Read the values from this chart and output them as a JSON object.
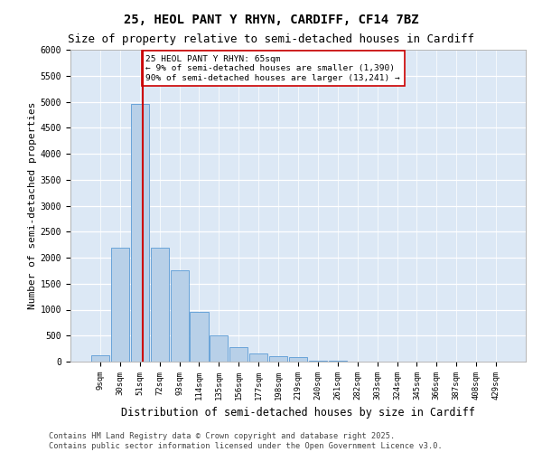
{
  "title_line1": "25, HEOL PANT Y RHYN, CARDIFF, CF14 7BZ",
  "title_line2": "Size of property relative to semi-detached houses in Cardiff",
  "xlabel": "Distribution of semi-detached houses by size in Cardiff",
  "ylabel": "Number of semi-detached properties",
  "footer": "Contains HM Land Registry data © Crown copyright and database right 2025.\nContains public sector information licensed under the Open Government Licence v3.0.",
  "categories": [
    "9sqm",
    "30sqm",
    "51sqm",
    "72sqm",
    "93sqm",
    "114sqm",
    "135sqm",
    "156sqm",
    "177sqm",
    "198sqm",
    "219sqm",
    "240sqm",
    "261sqm",
    "282sqm",
    "303sqm",
    "324sqm",
    "345sqm",
    "366sqm",
    "387sqm",
    "408sqm",
    "429sqm"
  ],
  "bar_values": [
    120,
    2200,
    4950,
    2200,
    1750,
    950,
    500,
    280,
    160,
    110,
    90,
    15,
    10,
    5,
    0,
    0,
    0,
    0,
    0,
    0,
    0
  ],
  "bar_color": "#b8d0e8",
  "bar_edge_color": "#5b9bd5",
  "background_color": "#dce8f5",
  "grid_color": "#ffffff",
  "vline_color": "#cc0000",
  "ylim_max": 6000,
  "ytick_step": 500,
  "annotation_text": "25 HEOL PANT Y RHYN: 65sqm\n← 9% of semi-detached houses are smaller (1,390)\n90% of semi-detached houses are larger (13,241) →",
  "bin_starts": [
    9,
    30,
    51,
    72,
    93,
    114,
    135,
    156,
    177,
    198,
    219,
    240,
    261,
    282,
    303,
    324,
    345,
    366,
    387,
    408,
    429
  ],
  "bin_width": 21,
  "property_sqm": 65,
  "bar_width": 0.92,
  "title_fontsize": 10,
  "subtitle_fontsize": 9,
  "ylabel_fontsize": 8,
  "xlabel_fontsize": 8.5,
  "tick_fontsize": 7,
  "footer_fontsize": 6.2
}
